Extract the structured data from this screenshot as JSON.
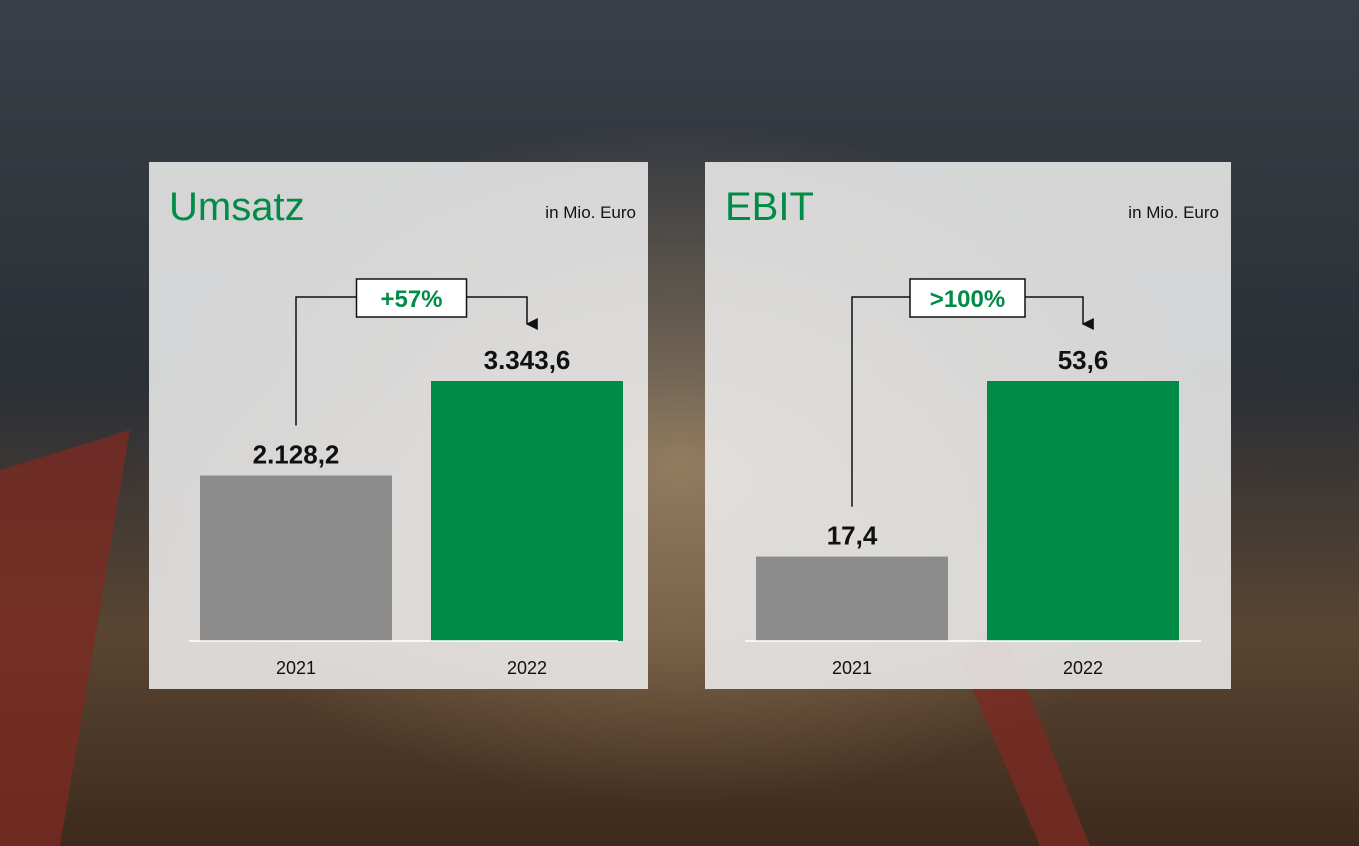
{
  "chart_data": [
    {
      "type": "bar",
      "title": "Umsatz",
      "subtitle": "in Mio. Euro",
      "categories": [
        "2021",
        "2022"
      ],
      "values": [
        2128.2,
        3343.6
      ],
      "value_labels": [
        "2.128,2",
        "3.343,6"
      ],
      "colors": [
        "#8c8c8c",
        "#008c46"
      ],
      "annotation": "+57%"
    },
    {
      "type": "bar",
      "title": "EBIT",
      "subtitle": "in Mio. Euro",
      "categories": [
        "2021",
        "2022"
      ],
      "values": [
        17.4,
        53.6
      ],
      "value_labels": [
        "17,4",
        "53,6"
      ],
      "colors": [
        "#8c8c8c",
        "#008c46"
      ],
      "annotation": ">100%"
    }
  ]
}
